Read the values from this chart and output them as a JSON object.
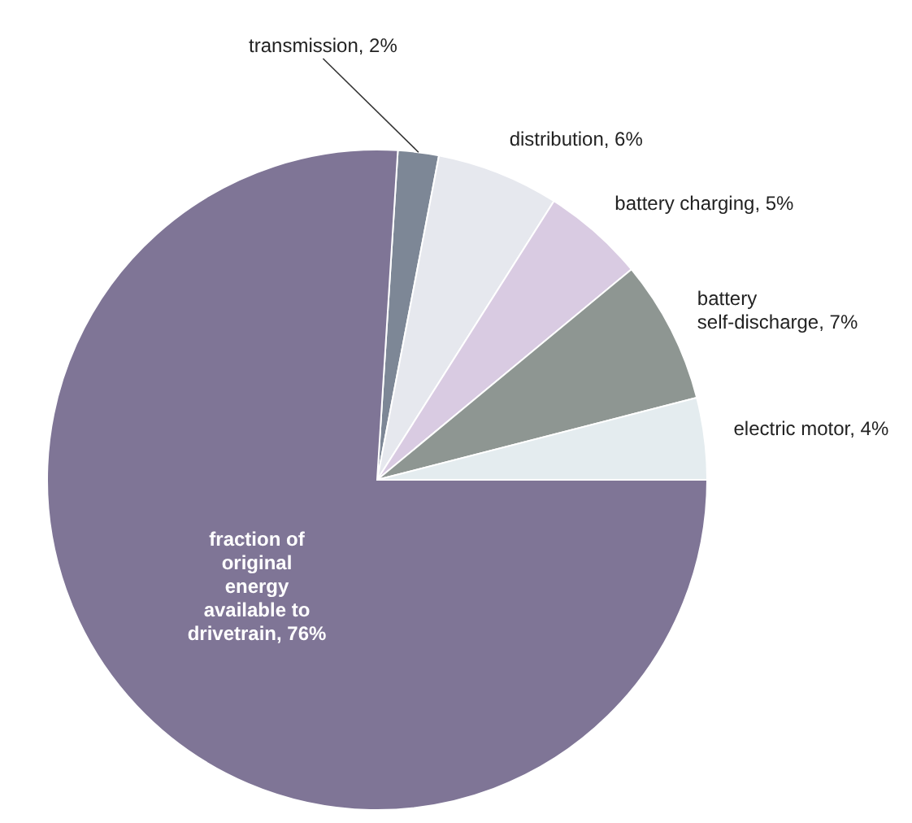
{
  "chart_data": {
    "type": "pie",
    "categories": [
      "transmission",
      "distribution",
      "battery charging",
      "battery self-discharge",
      "electric motor",
      "fraction of original energy available to drivetrain"
    ],
    "values": [
      2,
      6,
      5,
      7,
      4,
      76
    ],
    "value_labels": [
      "2%",
      "6%",
      "5%",
      "7%",
      "4%",
      "76%"
    ],
    "colors": [
      "#7d8796",
      "#e6e8ee",
      "#d9cbe2",
      "#8e9692",
      "#e4ecef",
      "#7f7596"
    ]
  }
}
